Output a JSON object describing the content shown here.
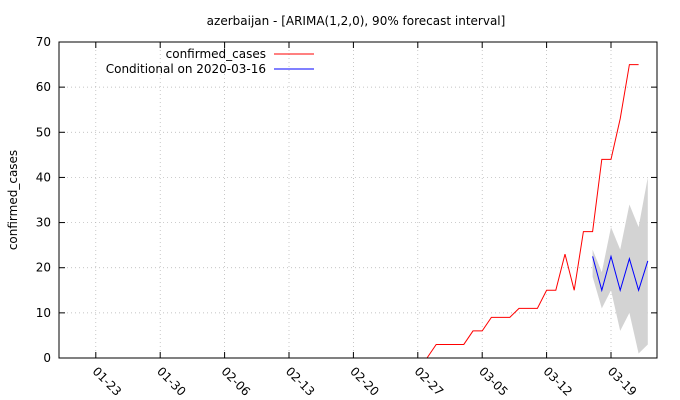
{
  "chart_data": {
    "type": "line",
    "title": "azerbaijan -  [ARIMA(1,2,0), 90% forecast interval]",
    "xlabel": "",
    "ylabel": "confirmed_cases",
    "ylim": [
      0,
      70
    ],
    "yticks": [
      0,
      10,
      20,
      30,
      40,
      50,
      60,
      70
    ],
    "xlim": [
      "2020-01-19",
      "2020-03-24"
    ],
    "xticks": [
      "01-23",
      "01-30",
      "02-06",
      "02-13",
      "02-20",
      "02-27",
      "03-05",
      "03-12",
      "03-19"
    ],
    "xtick_dates": [
      "2020-01-23",
      "2020-01-30",
      "2020-02-06",
      "2020-02-13",
      "2020-02-20",
      "2020-02-27",
      "2020-03-05",
      "2020-03-12",
      "2020-03-19"
    ],
    "grid": true,
    "legend_position": "top-left",
    "series": [
      {
        "name": "confirmed_cases",
        "color": "#ff0000",
        "x": [
          "2020-02-28",
          "2020-02-29",
          "2020-03-01",
          "2020-03-02",
          "2020-03-03",
          "2020-03-04",
          "2020-03-05",
          "2020-03-06",
          "2020-03-07",
          "2020-03-08",
          "2020-03-09",
          "2020-03-10",
          "2020-03-11",
          "2020-03-12",
          "2020-03-13",
          "2020-03-14",
          "2020-03-15",
          "2020-03-16",
          "2020-03-17",
          "2020-03-18",
          "2020-03-19",
          "2020-03-20",
          "2020-03-21",
          "2020-03-22",
          "2020-03-23"
        ],
        "values": [
          0,
          3,
          3,
          3,
          3,
          6,
          6,
          9,
          9,
          9,
          11,
          11,
          11,
          15,
          15,
          23,
          15,
          28,
          28,
          44,
          44,
          53,
          65,
          65,
          null
        ]
      },
      {
        "name": "Conditional on 2020-03-16",
        "color": "#0000ff",
        "x": [
          "2020-03-17",
          "2020-03-18",
          "2020-03-19",
          "2020-03-20",
          "2020-03-21",
          "2020-03-22",
          "2020-03-23"
        ],
        "values": [
          22.5,
          15,
          22.5,
          15,
          22,
          15,
          21.5
        ]
      }
    ],
    "forecast_interval": {
      "label": "90% forecast interval",
      "color": "#d3d3d3",
      "x": [
        "2020-03-17",
        "2020-03-18",
        "2020-03-19",
        "2020-03-20",
        "2020-03-21",
        "2020-03-22",
        "2020-03-23"
      ],
      "lower": [
        18,
        11,
        15,
        6,
        10,
        1,
        3
      ],
      "upper": [
        24,
        19,
        29,
        24,
        34,
        29,
        40
      ]
    }
  }
}
